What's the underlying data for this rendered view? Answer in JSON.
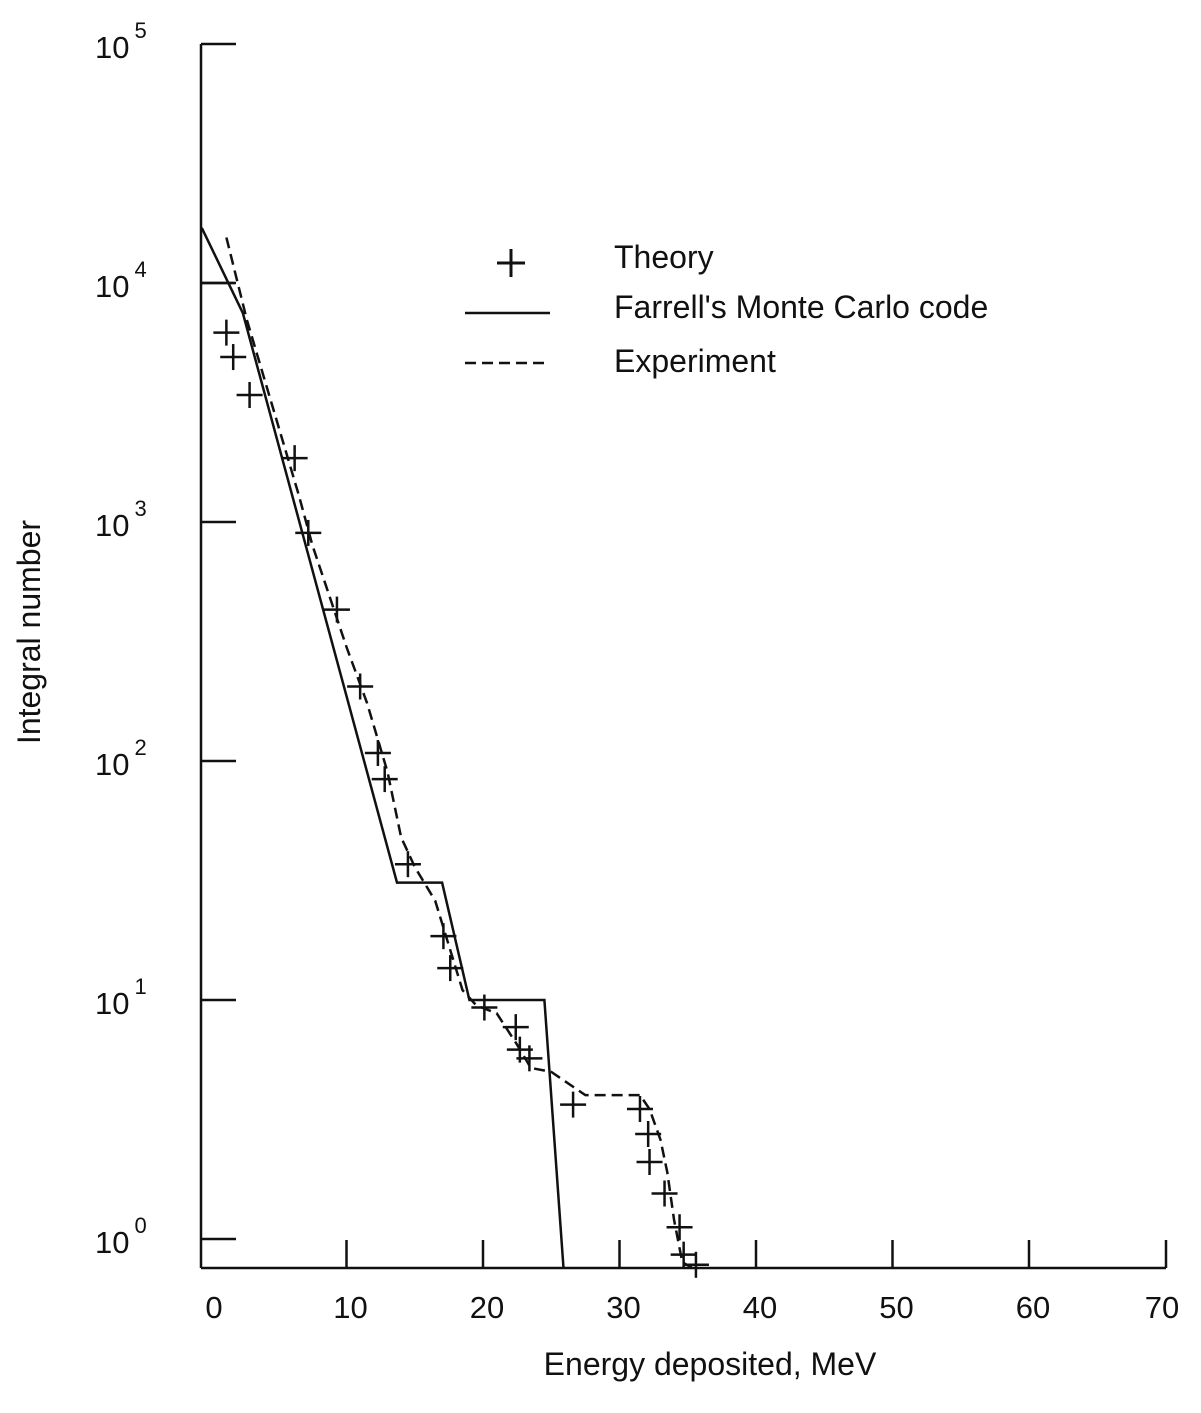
{
  "chart_data": {
    "type": "line",
    "xlabel": "Energy deposited, MeV",
    "ylabel": "Integral number",
    "xlim": [
      -0.6,
      70
    ],
    "xticks": [
      0,
      10,
      20,
      30,
      40,
      50,
      60,
      70
    ],
    "xtick_labels": [
      "0",
      "10",
      "20",
      "30",
      "40",
      "50",
      "60",
      "70"
    ],
    "y_scale": "log",
    "ylim": [
      0.75,
      100000
    ],
    "yticks": [
      1,
      10,
      100,
      1000,
      10000,
      100000
    ],
    "ytick_labels": [
      {
        "base": "10",
        "exp": "0"
      },
      {
        "base": "10",
        "exp": "1"
      },
      {
        "base": "10",
        "exp": "2"
      },
      {
        "base": "10",
        "exp": "3"
      },
      {
        "base": "10",
        "exp": "4"
      },
      {
        "base": "10",
        "exp": "5"
      }
    ],
    "legend": {
      "placement": "top-right",
      "entries": [
        {
          "label": "Theory",
          "marker": "plus"
        },
        {
          "label": "Farrell's Monte Carlo code",
          "style": "solid"
        },
        {
          "label": "Experiment",
          "style": "dashed"
        }
      ]
    },
    "series": [
      {
        "name": "Theory",
        "style": "plus-markers",
        "points": [
          [
            1.2,
            6200
          ],
          [
            1.7,
            4900
          ],
          [
            2.9,
            3400
          ],
          [
            6.2,
            1850
          ],
          [
            7.2,
            900
          ],
          [
            9.3,
            430
          ],
          [
            11.0,
            205
          ],
          [
            12.3,
            108
          ],
          [
            12.8,
            84
          ],
          [
            14.5,
            37
          ],
          [
            17.1,
            18.5
          ],
          [
            17.6,
            13.6
          ],
          [
            20.1,
            9.3
          ],
          [
            22.4,
            7.7
          ],
          [
            22.7,
            6.2
          ],
          [
            23.4,
            5.7
          ],
          [
            26.6,
            3.65
          ],
          [
            31.5,
            3.5
          ],
          [
            32.1,
            2.75
          ],
          [
            32.2,
            2.1
          ],
          [
            33.3,
            1.55
          ],
          [
            34.4,
            1.12
          ],
          [
            34.7,
            0.86
          ],
          [
            35.6,
            0.78
          ]
        ]
      },
      {
        "name": "Farrell's Monte Carlo code",
        "style": "solid",
        "points": [
          [
            -0.6,
            10000
          ],
          [
            1.8,
            10000
          ],
          [
            -0.6,
            17000
          ],
          [
            2.4,
            7500
          ],
          [
            13.7,
            31
          ],
          [
            17.0,
            31
          ],
          [
            19.0,
            10
          ],
          [
            24.5,
            10
          ],
          [
            25.9,
            0.75
          ]
        ]
      },
      {
        "name": "Experiment",
        "style": "dashed",
        "points": [
          [
            1.2,
            15500
          ],
          [
            2.7,
            7000
          ],
          [
            6.5,
            1300
          ],
          [
            7.5,
            800
          ],
          [
            10.0,
            300
          ],
          [
            11.5,
            175
          ],
          [
            13.0,
            90
          ],
          [
            14.0,
            48
          ],
          [
            15.0,
            36
          ],
          [
            16.5,
            26
          ],
          [
            18.5,
            11
          ],
          [
            19.5,
            9.5
          ],
          [
            21.0,
            8.8
          ],
          [
            22.5,
            6.5
          ],
          [
            23.5,
            5.2
          ],
          [
            25.0,
            5.0
          ],
          [
            27.5,
            4.0
          ],
          [
            31.5,
            4.0
          ],
          [
            32.2,
            3.5
          ],
          [
            33.0,
            2.6
          ],
          [
            33.5,
            1.9
          ],
          [
            34.0,
            1.2
          ],
          [
            34.6,
            0.8
          ],
          [
            35.3,
            0.76
          ]
        ]
      }
    ]
  }
}
